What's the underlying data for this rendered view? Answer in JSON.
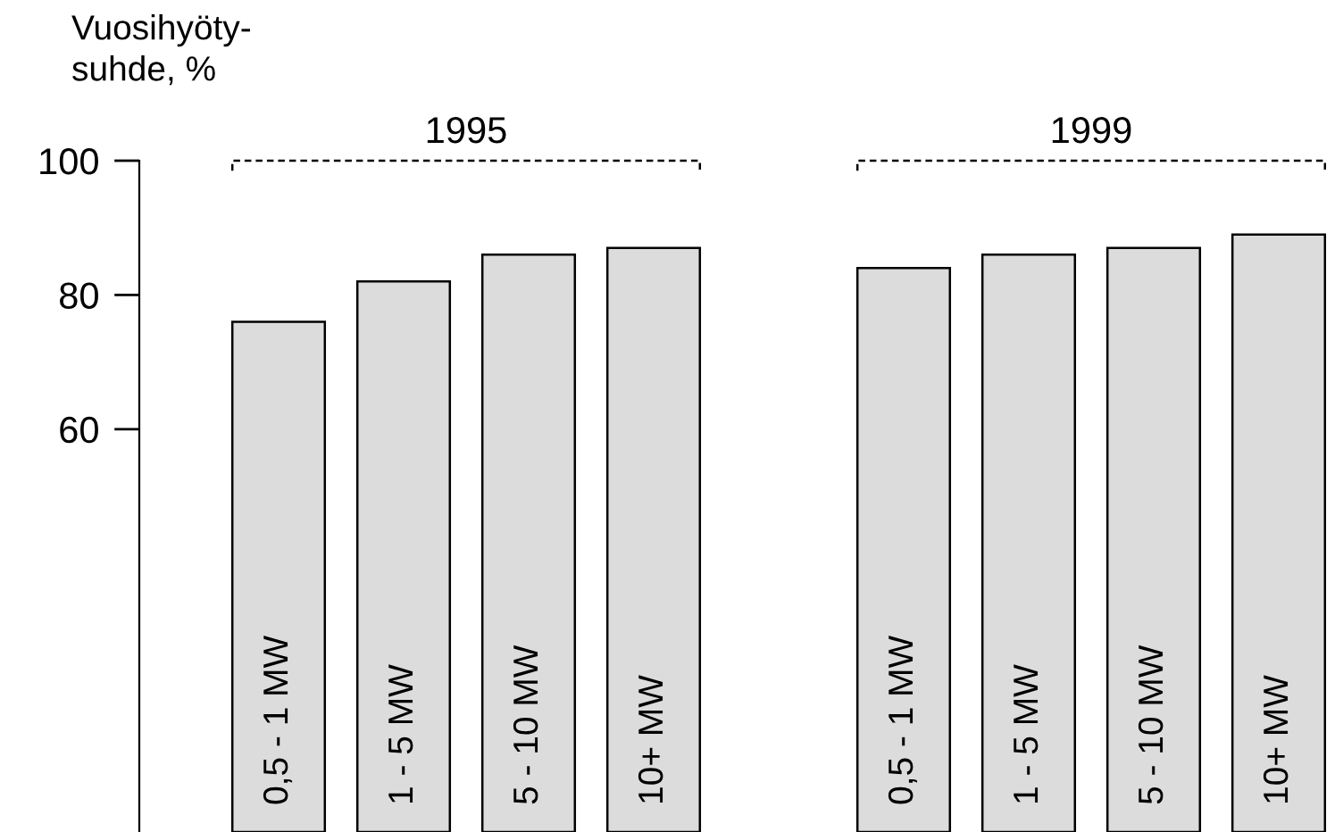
{
  "chart_data": {
    "type": "bar",
    "ylabel": "Vuosihyöty-\nsuhde, %",
    "categories": [
      "0,5 - 1 MW",
      "1 - 5 MW",
      "5 - 10 MW",
      "10+ MW",
      null,
      "0,5 - 1 MW",
      "1 - 5 MW",
      "5 - 10 MW",
      "10+ MW"
    ],
    "values": [
      76,
      82,
      86,
      87,
      null,
      84,
      86,
      87,
      89
    ],
    "color": "#dcdcdc",
    "annotations": [
      "1995",
      "1999"
    ],
    "ylim": [
      0,
      100
    ],
    "yticks": [
      60,
      80,
      100
    ],
    "grid": false,
    "legend": false
  }
}
